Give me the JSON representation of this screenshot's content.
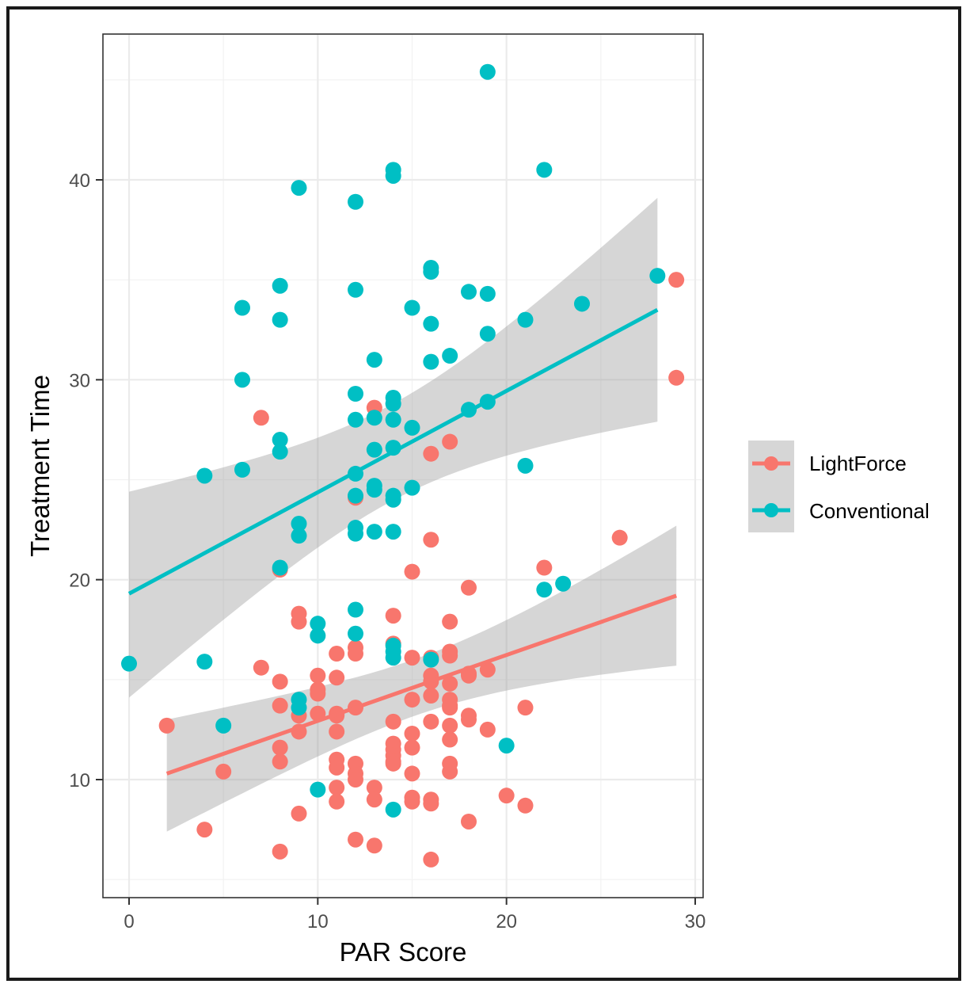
{
  "chart_data": {
    "type": "scatter",
    "title": "",
    "xlabel": "PAR Score",
    "ylabel": "Treatment Time",
    "xlim": [
      -1.4,
      30.4
    ],
    "ylim": [
      4.9,
      47.0
    ],
    "xticks": [
      0,
      10,
      20,
      30
    ],
    "yticks": [
      10,
      20,
      30,
      40
    ],
    "xtick_labels": [
      "0",
      "10",
      "20",
      "30"
    ],
    "ytick_labels": [
      "10",
      "20",
      "30",
      "40"
    ],
    "grid": true,
    "legend_position": "right",
    "series": [
      {
        "name": "LightForce",
        "color": "#F8766D",
        "points": [
          [
            2,
            12.7
          ],
          [
            4,
            7.5
          ],
          [
            5,
            10.4
          ],
          [
            7,
            28.1
          ],
          [
            7,
            15.6
          ],
          [
            8,
            20.5
          ],
          [
            8,
            14.9
          ],
          [
            8,
            13.7
          ],
          [
            8,
            11.6
          ],
          [
            8,
            10.9
          ],
          [
            8,
            6.4
          ],
          [
            9,
            18.3
          ],
          [
            9,
            17.9
          ],
          [
            9,
            13.2
          ],
          [
            9,
            12.4
          ],
          [
            9,
            8.3
          ],
          [
            10,
            15.2
          ],
          [
            10,
            14.5
          ],
          [
            10,
            14.3
          ],
          [
            10,
            13.3
          ],
          [
            11,
            16.3
          ],
          [
            11,
            15.1
          ],
          [
            11,
            13.3
          ],
          [
            11,
            13.2
          ],
          [
            11,
            12.4
          ],
          [
            11,
            11.0
          ],
          [
            11,
            10.6
          ],
          [
            11,
            9.6
          ],
          [
            11,
            8.9
          ],
          [
            12,
            24.1
          ],
          [
            12,
            16.6
          ],
          [
            12,
            16.3
          ],
          [
            12,
            13.6
          ],
          [
            12,
            10.8
          ],
          [
            12,
            10.3
          ],
          [
            12,
            10.0
          ],
          [
            12,
            7.0
          ],
          [
            13,
            28.6
          ],
          [
            13,
            9.6
          ],
          [
            13,
            9.0
          ],
          [
            13,
            6.7
          ],
          [
            14,
            18.2
          ],
          [
            14,
            16.8
          ],
          [
            14,
            12.9
          ],
          [
            14,
            11.8
          ],
          [
            14,
            11.5
          ],
          [
            14,
            11.2
          ],
          [
            14,
            10.9
          ],
          [
            14,
            10.8
          ],
          [
            15,
            20.4
          ],
          [
            15,
            16.1
          ],
          [
            15,
            14.0
          ],
          [
            15,
            12.3
          ],
          [
            15,
            11.6
          ],
          [
            15,
            10.3
          ],
          [
            15,
            9.1
          ],
          [
            15,
            8.9
          ],
          [
            16,
            26.3
          ],
          [
            16,
            22.0
          ],
          [
            16,
            16.1
          ],
          [
            16,
            15.2
          ],
          [
            16,
            14.9
          ],
          [
            16,
            14.2
          ],
          [
            16,
            12.9
          ],
          [
            16,
            9.0
          ],
          [
            16,
            8.8
          ],
          [
            16,
            6.0
          ],
          [
            17,
            26.9
          ],
          [
            17,
            17.9
          ],
          [
            17,
            16.4
          ],
          [
            17,
            16.2
          ],
          [
            17,
            14.8
          ],
          [
            17,
            14.0
          ],
          [
            17,
            13.7
          ],
          [
            17,
            13.6
          ],
          [
            17,
            12.7
          ],
          [
            17,
            12.0
          ],
          [
            17,
            10.8
          ],
          [
            17,
            10.4
          ],
          [
            18,
            19.6
          ],
          [
            18,
            15.3
          ],
          [
            18,
            15.2
          ],
          [
            18,
            13.2
          ],
          [
            18,
            13.0
          ],
          [
            18,
            7.9
          ],
          [
            19,
            15.5
          ],
          [
            19,
            12.5
          ],
          [
            20,
            9.2
          ],
          [
            21,
            13.6
          ],
          [
            21,
            8.7
          ],
          [
            22,
            20.6
          ],
          [
            26,
            22.1
          ],
          [
            29,
            35.0
          ],
          [
            29,
            30.1
          ]
        ],
        "fit": {
          "x_range": [
            2,
            29
          ],
          "y_start": 10.3,
          "y_end": 19.2,
          "ci_lower": [
            7.4,
            15.7
          ],
          "ci_upper": [
            13.0,
            22.7
          ]
        }
      },
      {
        "name": "Conventional",
        "color": "#00BFC4",
        "points": [
          [
            0,
            15.8
          ],
          [
            4,
            15.9
          ],
          [
            4,
            25.2
          ],
          [
            5,
            12.7
          ],
          [
            6,
            33.6
          ],
          [
            6,
            30.0
          ],
          [
            6,
            25.5
          ],
          [
            8,
            34.7
          ],
          [
            8,
            33.0
          ],
          [
            8,
            27.0
          ],
          [
            8,
            26.4
          ],
          [
            8,
            20.6
          ],
          [
            9,
            39.6
          ],
          [
            9,
            22.8
          ],
          [
            9,
            22.2
          ],
          [
            9,
            14.0
          ],
          [
            9,
            13.6
          ],
          [
            10,
            17.8
          ],
          [
            10,
            17.2
          ],
          [
            10,
            9.5
          ],
          [
            12,
            38.9
          ],
          [
            12,
            34.5
          ],
          [
            12,
            29.3
          ],
          [
            12,
            28.0
          ],
          [
            12,
            25.3
          ],
          [
            12,
            24.2
          ],
          [
            12,
            22.6
          ],
          [
            12,
            22.3
          ],
          [
            12,
            18.5
          ],
          [
            12,
            17.3
          ],
          [
            13,
            31.0
          ],
          [
            13,
            28.1
          ],
          [
            13,
            26.5
          ],
          [
            13,
            24.7
          ],
          [
            13,
            24.5
          ],
          [
            13,
            22.4
          ],
          [
            14,
            40.5
          ],
          [
            14,
            40.2
          ],
          [
            14,
            29.1
          ],
          [
            14,
            28.8
          ],
          [
            14,
            28.0
          ],
          [
            14,
            26.6
          ],
          [
            14,
            24.2
          ],
          [
            14,
            24.0
          ],
          [
            14,
            22.4
          ],
          [
            14,
            16.7
          ],
          [
            14,
            16.4
          ],
          [
            14,
            16.1
          ],
          [
            14,
            8.5
          ],
          [
            15,
            33.6
          ],
          [
            15,
            27.6
          ],
          [
            15,
            24.6
          ],
          [
            16,
            35.6
          ],
          [
            16,
            35.4
          ],
          [
            16,
            32.8
          ],
          [
            16,
            30.9
          ],
          [
            16,
            16.0
          ],
          [
            17,
            31.2
          ],
          [
            18,
            34.4
          ],
          [
            18,
            28.5
          ],
          [
            19,
            45.4
          ],
          [
            19,
            34.3
          ],
          [
            19,
            32.3
          ],
          [
            19,
            28.9
          ],
          [
            20,
            11.7
          ],
          [
            21,
            33.0
          ],
          [
            21,
            25.7
          ],
          [
            22,
            40.5
          ],
          [
            22,
            19.5
          ],
          [
            23,
            19.8
          ],
          [
            24,
            33.8
          ],
          [
            28,
            35.2
          ]
        ],
        "fit": {
          "x_range": [
            0,
            28
          ],
          "y_start": 19.3,
          "y_end": 33.5,
          "ci_lower": [
            14.1,
            27.9
          ],
          "ci_upper": [
            24.4,
            39.1
          ]
        }
      }
    ]
  },
  "legend": {
    "items": [
      {
        "label": "LightForce",
        "color": "#F8766D"
      },
      {
        "label": "Conventional",
        "color": "#00BFC4"
      }
    ]
  }
}
